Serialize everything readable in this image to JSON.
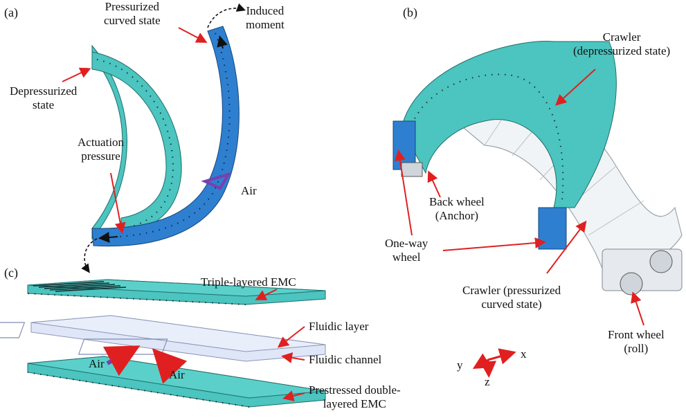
{
  "panels": {
    "a": "(a)",
    "b": "(b)",
    "c": "(c)"
  },
  "labels": {
    "pressurized_curved": "Pressurized\ncurved state",
    "induced_moment": "Induced\nmoment",
    "depressurized_state": "Depressurized\nstate",
    "actuation_pressure": "Actuation\npressure",
    "air_a": "Air",
    "crawler_depressurized": "Crawler\n(depressurized state)",
    "back_wheel": "Back wheel\n(Anchor)",
    "one_way_wheel": "One-way\nwheel",
    "crawler_pressurized": "Crawler (pressurized\ncurved state)",
    "front_wheel": "Front wheel\n(roll)",
    "triple_layered": "Triple-layered EMC",
    "fluidic_layer": "Fluidic layer",
    "fluidic_channel": "Fluidic channel",
    "prestressed": "Prestressed double-\nlayered EMC",
    "air_c1": "Air",
    "air_c2": "Air",
    "axis_x": "x",
    "axis_y": "y",
    "axis_z": "z"
  },
  "colors": {
    "teal": "#4cc4bf",
    "blue": "#2e7fcf",
    "arrow_red": "#e02020",
    "air_purple": "#7a3fb0"
  }
}
